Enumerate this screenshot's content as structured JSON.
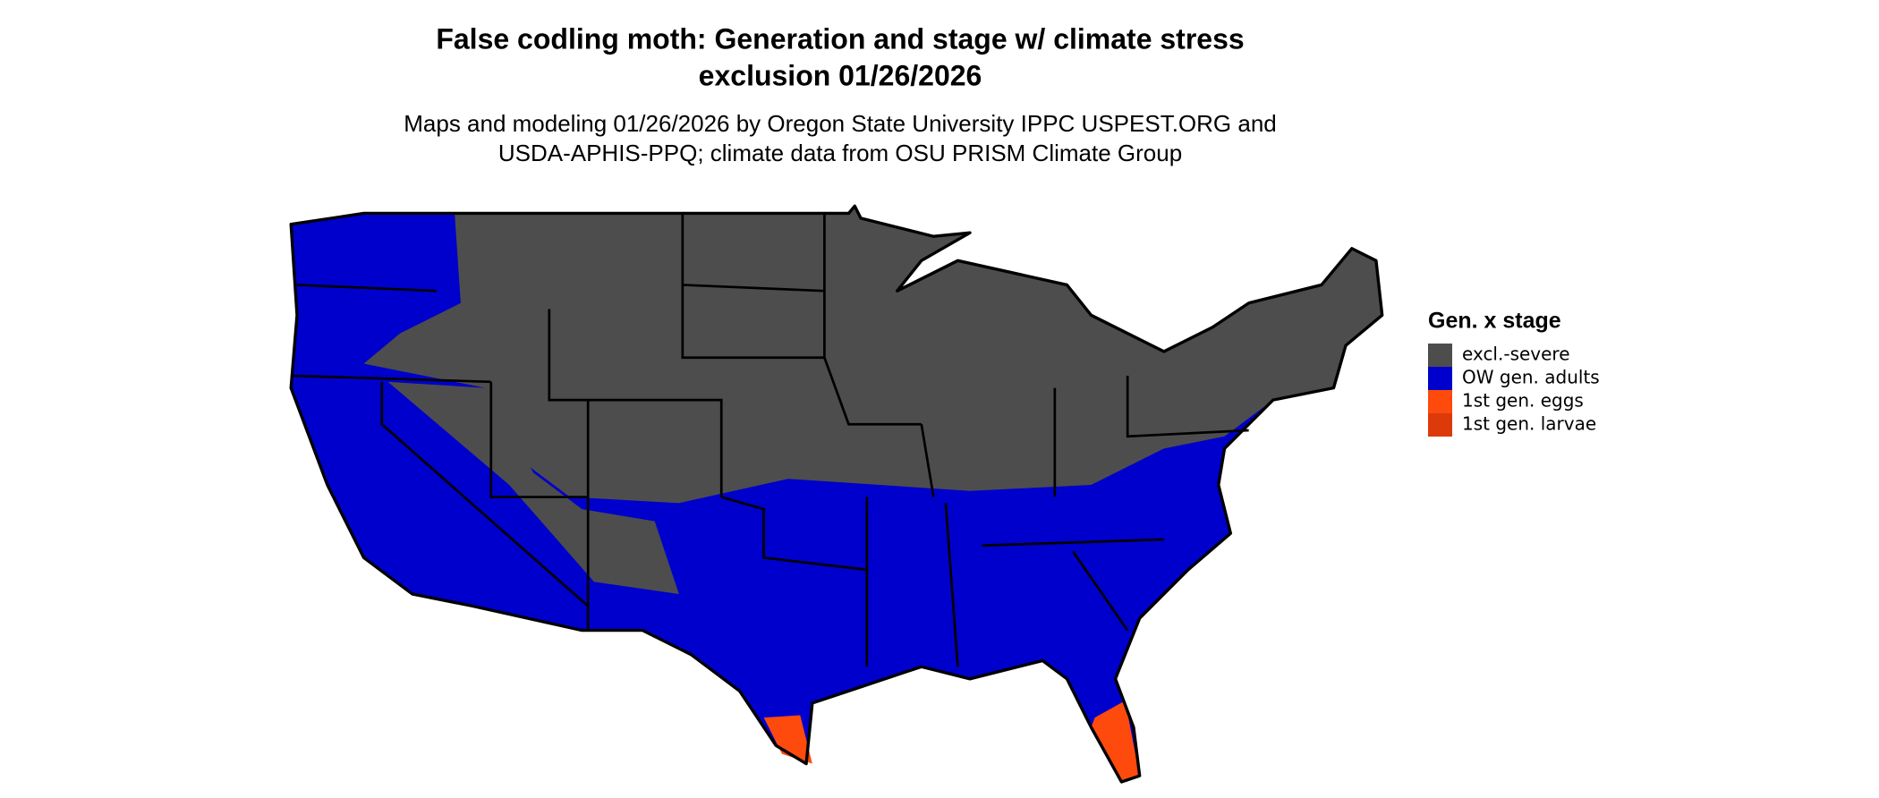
{
  "title": [
    "False codling moth: Generation and stage w/ climate stress",
    "exclusion 01/26/2026"
  ],
  "subtitle": [
    "Maps and modeling 01/26/2026 by Oregon State University IPPC USPEST.ORG and",
    "USDA-APHIS-PPQ; climate data from OSU PRISM Climate Group"
  ],
  "legend": {
    "title": "Gen. x stage",
    "items": [
      {
        "label": "excl.-severe",
        "color": "#4d4d4d"
      },
      {
        "label": "OW gen. adults",
        "color": "#0000cc"
      },
      {
        "label": "1st gen. eggs",
        "color": "#ff4a0d"
      },
      {
        "label": "1st gen. larvae",
        "color": "#dd3a0c"
      }
    ]
  }
}
